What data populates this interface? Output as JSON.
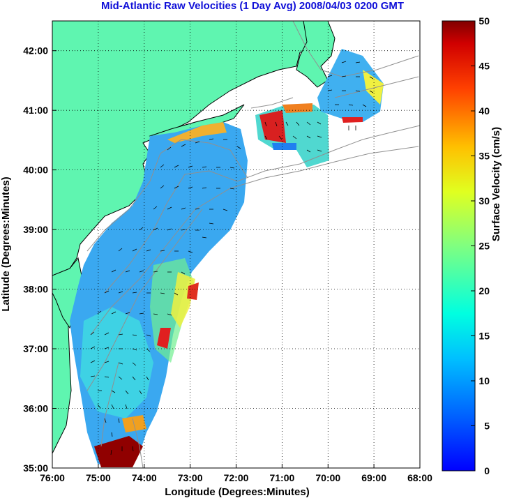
{
  "title": "Mid-Atlantic Raw Velocities (1 Day Avg) 2008/04/03 0200 GMT",
  "x_axis": {
    "label": "Longitude (Degrees:Minutes)",
    "ticks": [
      "76:00",
      "75:00",
      "74:00",
      "73:00",
      "72:00",
      "71:00",
      "70:00",
      "69:00",
      "68:00"
    ],
    "range": [
      -76,
      -68
    ]
  },
  "y_axis": {
    "label": "Latitude (Degrees:Minutes)",
    "ticks": [
      "35:00",
      "36:00",
      "37:00",
      "38:00",
      "39:00",
      "40:00",
      "41:00",
      "42:00"
    ],
    "range": [
      35,
      42.5
    ]
  },
  "colorbar": {
    "label": "Surface Velocity (cm/s)",
    "min": 0,
    "max": 50,
    "ticks": [
      "0",
      "5",
      "10",
      "15",
      "20",
      "25",
      "30",
      "35",
      "40",
      "45",
      "50"
    ],
    "colormap": "jet"
  },
  "colors": {
    "land": "#5ff5b0",
    "ocean": "#ffffff",
    "title": "#1010d8",
    "grid": "#000000",
    "bathymetry": "#909090",
    "coast": "#000000"
  },
  "grid": "dotted"
}
